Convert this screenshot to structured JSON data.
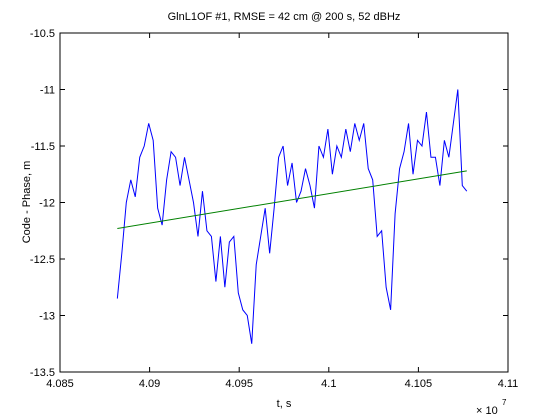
{
  "chart_data": {
    "type": "line",
    "title": "GlnL1OF #1, RMSE = 42 cm @ 200 s, 52 dBHz",
    "x_label": "t, s",
    "y_label": "Code - Phase, m",
    "x_multiplier": "× 10",
    "x_exponent": "7",
    "xlim": [
      4.085,
      4.11
    ],
    "xticks": [
      4.085,
      4.09,
      4.095,
      4.1,
      4.105,
      4.11
    ],
    "ylim": [
      -13.5,
      -10.5
    ],
    "yticks": [
      -10.5,
      -11,
      -11.5,
      -12,
      -12.5,
      -13,
      -13.5
    ],
    "grid": false,
    "series": [
      {
        "color": "#0000ff",
        "x": [
          4.0882,
          4.08845,
          4.0887,
          4.08895,
          4.0892,
          4.08945,
          4.0897,
          4.08995,
          4.0902,
          4.09045,
          4.0907,
          4.09095,
          4.0912,
          4.09145,
          4.0917,
          4.09195,
          4.0922,
          4.09245,
          4.0927,
          4.09295,
          4.0932,
          4.09345,
          4.0937,
          4.09395,
          4.0942,
          4.09445,
          4.0947,
          4.09495,
          4.0952,
          4.09545,
          4.0957,
          4.09595,
          4.0962,
          4.09645,
          4.0967,
          4.09695,
          4.0972,
          4.09745,
          4.0977,
          4.09795,
          4.0982,
          4.09845,
          4.0987,
          4.09895,
          4.0992,
          4.09945,
          4.0997,
          4.09995,
          4.1002,
          4.10045,
          4.1007,
          4.10095,
          4.1012,
          4.10145,
          4.1017,
          4.10195,
          4.1022,
          4.10245,
          4.1027,
          4.10295,
          4.1032,
          4.10345,
          4.1037,
          4.10395,
          4.1042,
          4.10445,
          4.1047,
          4.10495,
          4.1052,
          4.10545,
          4.1057,
          4.10595,
          4.1062,
          4.10645,
          4.1067,
          4.10695,
          4.1072,
          4.10745,
          4.1077
        ],
        "values": [
          -12.85,
          -12.45,
          -12.0,
          -11.8,
          -11.95,
          -11.6,
          -11.5,
          -11.3,
          -11.45,
          -12.05,
          -12.2,
          -11.8,
          -11.55,
          -11.6,
          -11.85,
          -11.6,
          -11.8,
          -12.0,
          -12.3,
          -11.9,
          -12.25,
          -12.3,
          -12.7,
          -12.3,
          -12.75,
          -12.35,
          -12.3,
          -12.8,
          -12.95,
          -13.0,
          -13.25,
          -12.55,
          -12.3,
          -12.05,
          -12.45,
          -12.05,
          -11.6,
          -11.5,
          -11.85,
          -11.65,
          -12.0,
          -11.9,
          -11.7,
          -11.85,
          -12.05,
          -11.5,
          -11.6,
          -11.35,
          -11.75,
          -11.5,
          -11.6,
          -11.35,
          -11.55,
          -11.3,
          -11.45,
          -11.3,
          -11.7,
          -11.8,
          -12.3,
          -12.25,
          -12.75,
          -12.95,
          -12.1,
          -11.7,
          -11.55,
          -11.3,
          -11.75,
          -11.45,
          -11.5,
          -11.2,
          -11.6,
          -11.6,
          -11.85,
          -11.45,
          -11.6,
          -11.3,
          -11.0,
          -11.85,
          -11.9
        ]
      },
      {
        "color": "#008000",
        "x": [
          4.0882,
          4.1077
        ],
        "values": [
          -12.23,
          -11.72
        ]
      }
    ]
  }
}
